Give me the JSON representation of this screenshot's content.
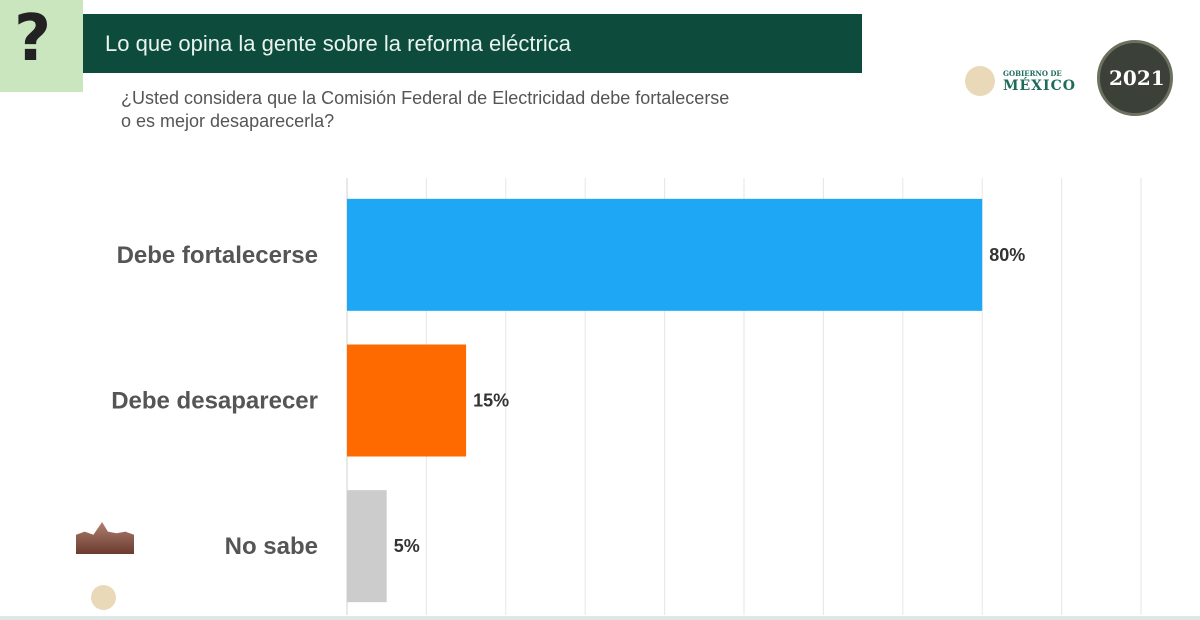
{
  "header": {
    "title": "Lo que opina la gente sobre la reforma eléctrica",
    "icon": "question-mark-icon"
  },
  "logos": {
    "gobierno_small": "GOBIERNO DE",
    "gobierno_big": "MÉXICO",
    "year": "2021"
  },
  "chart_data": {
    "type": "bar",
    "orientation": "horizontal",
    "title": "¿Usted considera que la Comisión Federal de Electricidad debe fortalecerse o es mejor desaparecerla?",
    "categories": [
      "Debe fortalecerse",
      "Debe desaparecer",
      "No sabe"
    ],
    "values": [
      80,
      15,
      5
    ],
    "data_labels": [
      "80%",
      "15%",
      "5%"
    ],
    "colors": [
      "#1ea7f4",
      "#ff6a00",
      "#cccccc"
    ],
    "xlim": [
      0,
      100
    ],
    "grid": true,
    "gridline_step": 10
  }
}
